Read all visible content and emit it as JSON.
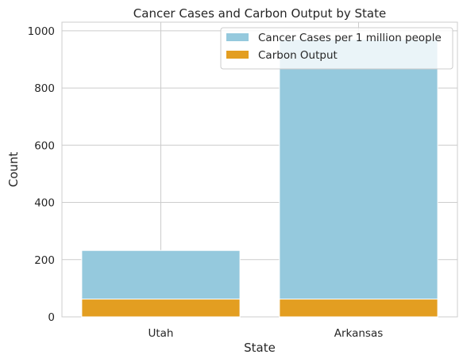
{
  "chart_data": {
    "type": "bar",
    "stacking": "overlaid",
    "title": "Cancer Cases and Carbon Output by State",
    "xlabel": "State",
    "ylabel": "Count",
    "categories": [
      "Utah",
      "Arkansas"
    ],
    "series": [
      {
        "name": "Cancer Cases per 1 million people",
        "values": [
          232,
          970
        ],
        "color": "#95c9dd"
      },
      {
        "name": "Carbon Output",
        "values": [
          62,
          62
        ],
        "color": "#e39e21"
      }
    ],
    "ylim": [
      0,
      1030
    ],
    "yticks": [
      0,
      200,
      400,
      600,
      800,
      1000
    ],
    "grid": true,
    "legend_position": "top-right"
  }
}
